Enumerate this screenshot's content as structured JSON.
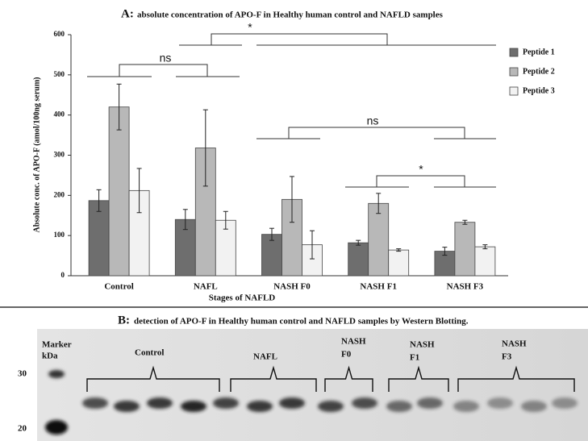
{
  "chart_data": {
    "type": "bar",
    "panel": "A:",
    "title": "absolute concentration of APO-F in Healthy human control and NAFLD samples",
    "x_label": "Stages of NAFLD",
    "y_label": "Absolute conc. of APO-F (amol/100ng serum)",
    "categories": [
      "Control",
      "NAFL",
      "NASH F0",
      "NASH F1",
      "NASH F3"
    ],
    "series": [
      {
        "name": "Peptide 1",
        "color": "#6e6e6e",
        "values": [
          187,
          140,
          103,
          82,
          61
        ],
        "errors": [
          27,
          25,
          15,
          6,
          10
        ]
      },
      {
        "name": "Peptide 2",
        "color": "#b8b8b8",
        "values": [
          420,
          318,
          190,
          180,
          133
        ],
        "errors": [
          57,
          95,
          57,
          25,
          5
        ]
      },
      {
        "name": "Peptide 3",
        "color": "#f2f2f2",
        "values": [
          212,
          138,
          77,
          64,
          72
        ],
        "errors": [
          55,
          22,
          35,
          3,
          5
        ]
      }
    ],
    "ylim": [
      0,
      600
    ],
    "yticks": [
      0,
      100,
      200,
      300,
      400,
      500,
      600
    ],
    "grid": false,
    "legend": "right",
    "annotations": [
      "*",
      "ns",
      "ns",
      "*"
    ]
  },
  "blot": {
    "panel": "B:",
    "title": "detection of APO-F in Healthy human control and NAFLD samples by Western Blotting.",
    "marker_label": [
      "Marker",
      "kDa"
    ],
    "markers": [
      30,
      20
    ],
    "groups": [
      [
        "Control"
      ],
      [
        "NAFL"
      ],
      [
        "NASH",
        "F0"
      ],
      [
        "NASH",
        "F1"
      ],
      [
        "NASH",
        "F3"
      ]
    ]
  }
}
